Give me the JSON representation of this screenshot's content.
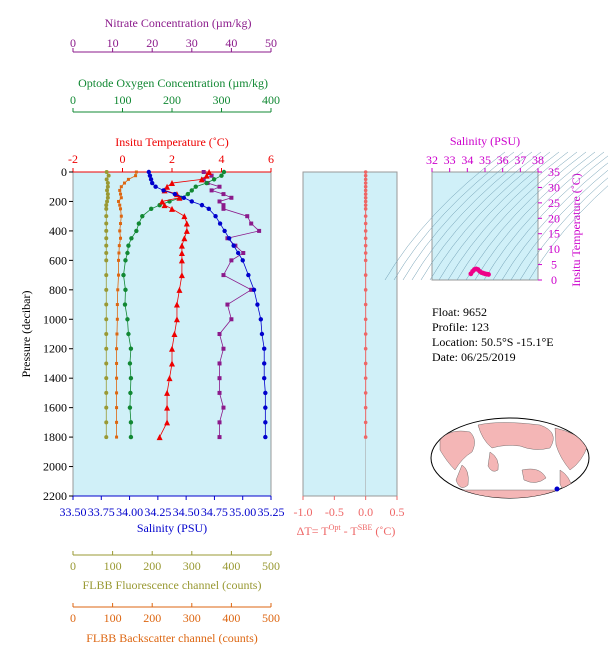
{
  "colors": {
    "nitrate": "#8b1a8b",
    "oxygen": "#118833",
    "temperature": "#ee0000",
    "salinity": "#0000cc",
    "fluorescence": "#999933",
    "backscatter": "#dd6611",
    "delta_t": "#ee6666",
    "ts_axis": "#cc00cc",
    "plot_bg": "#d0f0f8"
  },
  "info": {
    "float_line": "Float:  9652",
    "profile_line": "Profile:  123",
    "location_line": "Location:  50.5°S  -15.1°E",
    "date_line": "Date:  06/25/2019"
  },
  "chart_data": [
    {
      "type": "line",
      "id": "main_profile",
      "ylabel": "Pressure (decibar)",
      "ylim": [
        2200,
        0
      ],
      "yticks": [
        "0",
        "200",
        "400",
        "600",
        "800",
        "1000",
        "1200",
        "1400",
        "1600",
        "1800",
        "2000",
        "2200"
      ],
      "pressure": [
        0,
        25,
        50,
        75,
        100,
        125,
        150,
        175,
        200,
        225,
        250,
        300,
        350,
        400,
        450,
        500,
        550,
        600,
        700,
        800,
        900,
        1000,
        1100,
        1200,
        1300,
        1400,
        1500,
        1600,
        1700,
        1800
      ],
      "axes": [
        {
          "name": "nitrate",
          "label": "Nitrate Concentration (µm/kg)",
          "range": [
            0,
            50
          ],
          "ticks": [
            "0",
            "10",
            "20",
            "30",
            "40",
            "50"
          ]
        },
        {
          "name": "oxygen",
          "label": "Optode Oxygen Concentration (µm/kg)",
          "range": [
            0,
            400
          ],
          "ticks": [
            "0",
            "100",
            "200",
            "300",
            "400"
          ]
        },
        {
          "name": "temperature",
          "label": "Insitu Temperature (˚C)",
          "range": [
            -2,
            6
          ],
          "ticks": [
            "-2",
            "0",
            "2",
            "4",
            "6"
          ]
        },
        {
          "name": "salinity",
          "label": "Salinity (PSU)",
          "range": [
            33.5,
            35.25
          ],
          "ticks": [
            "33.50",
            "33.75",
            "34.00",
            "34.25",
            "34.50",
            "34.75",
            "35.00",
            "35.25"
          ]
        },
        {
          "name": "fluorescence",
          "label": "FLBB Fluorescence channel (counts)",
          "range": [
            0,
            500
          ],
          "ticks": [
            "0",
            "100",
            "200",
            "300",
            "400",
            "500"
          ]
        },
        {
          "name": "backscatter",
          "label": "FLBB Backscatter channel (counts)",
          "range": [
            0,
            500
          ],
          "ticks": [
            "0",
            "100",
            "200",
            "300",
            "400",
            "500"
          ]
        }
      ],
      "series": [
        {
          "name": "nitrate",
          "values": [
            33,
            35,
            33,
            34,
            37,
            35,
            38,
            40,
            37,
            38,
            38,
            44,
            45,
            47,
            39,
            41,
            43,
            40,
            38,
            45,
            39,
            40,
            37,
            38,
            37,
            37,
            37,
            38,
            37,
            37
          ]
        },
        {
          "name": "oxygen",
          "values": [
            305,
            300,
            285,
            270,
            248,
            240,
            232,
            218,
            195,
            175,
            158,
            140,
            133,
            128,
            118,
            112,
            110,
            106,
            102,
            106,
            105,
            110,
            112,
            117,
            115,
            117,
            116,
            115,
            117,
            117
          ]
        },
        {
          "name": "temperature",
          "values": [
            3.5,
            3.4,
            3.2,
            2.0,
            1.8,
            1.7,
            2.2,
            2.3,
            1.6,
            1.7,
            2.0,
            2.5,
            2.6,
            2.6,
            2.5,
            2.4,
            2.4,
            2.4,
            2.4,
            2.3,
            2.2,
            2.2,
            2.1,
            2.0,
            2.0,
            1.9,
            1.8,
            1.8,
            1.8,
            1.5
          ]
        },
        {
          "name": "salinity",
          "values": [
            34.17,
            34.18,
            34.19,
            34.2,
            34.23,
            34.3,
            34.4,
            34.48,
            34.55,
            34.64,
            34.7,
            34.76,
            34.8,
            34.84,
            34.88,
            34.92,
            34.96,
            35.0,
            35.05,
            35.1,
            35.13,
            35.16,
            35.17,
            35.19,
            35.19,
            35.19,
            35.2,
            35.2,
            35.2,
            35.2
          ]
        },
        {
          "name": "fluorescence",
          "values": [
            85,
            90,
            85,
            88,
            88,
            86,
            88,
            88,
            86,
            84,
            84,
            84,
            84,
            84,
            84,
            84,
            84,
            84,
            84,
            84,
            84,
            84,
            84,
            84,
            84,
            84,
            84,
            84,
            84,
            84
          ]
        },
        {
          "name": "backscatter",
          "values": [
            160,
            158,
            140,
            130,
            122,
            118,
            120,
            122,
            115,
            118,
            120,
            122,
            120,
            118,
            120,
            117,
            116,
            115,
            115,
            113,
            112,
            112,
            111,
            110,
            110,
            110,
            110,
            110,
            110,
            110
          ]
        }
      ]
    },
    {
      "type": "scatter",
      "id": "delta_t",
      "xlabel": "ΔT= T",
      "xlabel_sup1": "Opt",
      "xlabel_mid": " - T",
      "xlabel_sup2": "SBE",
      "xlabel_tail": " (˚C)",
      "xlim": [
        -1.0,
        0.5
      ],
      "xticks": [
        "-1.0",
        "-0.5",
        "0.0",
        "0.5"
      ],
      "x": [
        0.0,
        0.0,
        0.0,
        0.0,
        0.0,
        0.0,
        0.0,
        0.0,
        0.0,
        0.0,
        0.0,
        0.0,
        0.0,
        0.0,
        0.0,
        0.0,
        0.0,
        0.0,
        0.0,
        0.0,
        0.0,
        0.0,
        0.0,
        0.0,
        0.0,
        0.0,
        0.0,
        0.0,
        0.0,
        0.0
      ],
      "y": [
        0,
        25,
        50,
        75,
        100,
        125,
        150,
        175,
        200,
        225,
        250,
        300,
        350,
        400,
        450,
        500,
        550,
        600,
        700,
        800,
        900,
        1000,
        1100,
        1200,
        1300,
        1400,
        1500,
        1600,
        1700,
        1800
      ]
    },
    {
      "type": "scatter",
      "id": "ts_diagram",
      "xlabel": "Salinity (PSU)",
      "ylabel": "Insitu Temperature (˚C)",
      "xlim": [
        32,
        38
      ],
      "ylim": [
        0,
        35
      ],
      "xticks": [
        "32",
        "33",
        "34",
        "35",
        "36",
        "37",
        "38"
      ],
      "yticks": [
        "0",
        "5",
        "10",
        "15",
        "20",
        "25",
        "30",
        "35"
      ],
      "x": [
        34.2,
        34.3,
        34.4,
        34.5,
        34.6,
        34.7,
        34.8,
        34.9,
        35.0,
        35.1,
        35.2
      ],
      "y": [
        2.0,
        2.8,
        3.4,
        3.6,
        3.4,
        2.8,
        2.4,
        2.2,
        2.0,
        1.9,
        1.8
      ]
    }
  ]
}
